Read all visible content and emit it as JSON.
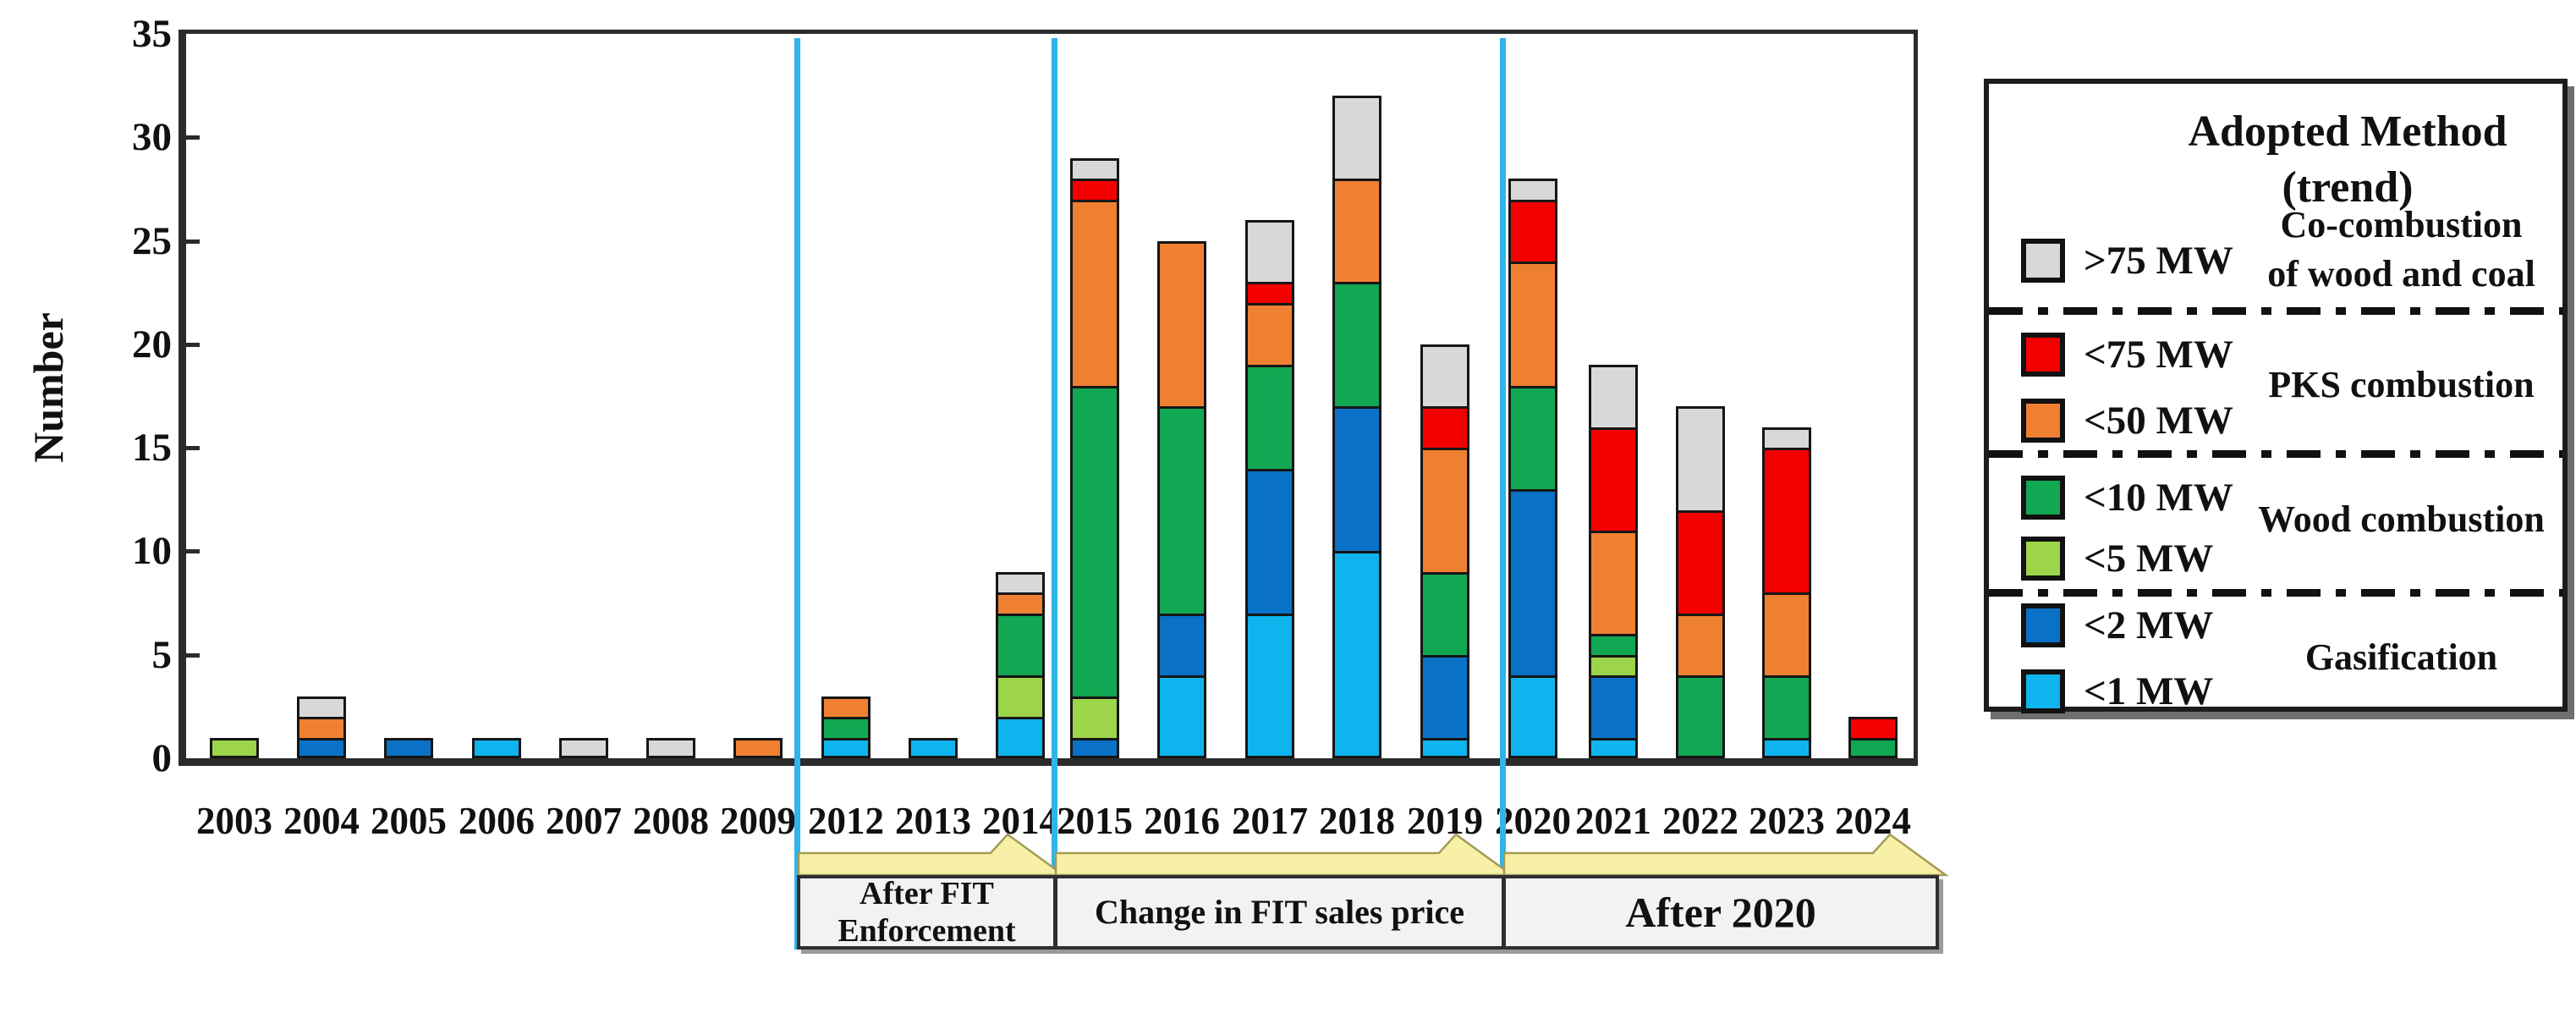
{
  "chart_data": {
    "type": "bar",
    "stacked": true,
    "title": "",
    "xlabel": "",
    "ylabel": "Number",
    "ylim": [
      0,
      35
    ],
    "yticks": [
      0,
      5,
      10,
      15,
      20,
      25,
      30,
      35
    ],
    "grid": false,
    "legend_position": "right",
    "categories": [
      "2003",
      "2004",
      "2005",
      "2006",
      "2007",
      "2008",
      "2009",
      "2012",
      "2013",
      "2014",
      "2015",
      "2016",
      "2017",
      "2018",
      "2019",
      "2020",
      "2021",
      "2022",
      "2023",
      "2024"
    ],
    "series": [
      {
        "name": "<1 MW",
        "method": "Gasification",
        "color": "#0FB4EE",
        "values": [
          0,
          0,
          0,
          1,
          0,
          0,
          0,
          1,
          1,
          2,
          0,
          4,
          7,
          10,
          1,
          4,
          1,
          0,
          1,
          0
        ]
      },
      {
        "name": "<2 MW",
        "method": "Gasification",
        "color": "#0971C6",
        "values": [
          0,
          1,
          1,
          0,
          0,
          0,
          0,
          0,
          0,
          0,
          1,
          3,
          7,
          7,
          4,
          9,
          3,
          0,
          0,
          0
        ]
      },
      {
        "name": "<5 MW",
        "method": "Wood combustion",
        "color": "#9CD54A",
        "values": [
          1,
          0,
          0,
          0,
          0,
          0,
          0,
          0,
          0,
          2,
          2,
          0,
          0,
          0,
          0,
          0,
          1,
          0,
          0,
          0
        ]
      },
      {
        "name": "<10 MW",
        "method": "Wood combustion",
        "color": "#12A752",
        "values": [
          0,
          0,
          0,
          0,
          0,
          0,
          0,
          1,
          0,
          3,
          15,
          10,
          5,
          6,
          4,
          5,
          1,
          4,
          3,
          1
        ]
      },
      {
        "name": "<50 MW",
        "method": "PKS combustion",
        "color": "#EF8032",
        "values": [
          0,
          1,
          0,
          0,
          0,
          0,
          1,
          1,
          0,
          1,
          9,
          8,
          3,
          5,
          6,
          6,
          5,
          3,
          4,
          0
        ]
      },
      {
        "name": "<75 MW",
        "method": "PKS combustion",
        "color": "#F40000",
        "values": [
          0,
          0,
          0,
          0,
          0,
          0,
          0,
          0,
          0,
          0,
          1,
          0,
          1,
          0,
          2,
          3,
          5,
          5,
          7,
          1
        ]
      },
      {
        "name": ">75 MW",
        "method": "Co-combustion of wood and coal",
        "color": "#D8D8D8",
        "values": [
          0,
          1,
          0,
          0,
          1,
          1,
          0,
          0,
          0,
          1,
          1,
          0,
          3,
          4,
          3,
          1,
          3,
          5,
          1,
          0
        ]
      }
    ],
    "totals": [
      1,
      3,
      1,
      1,
      1,
      1,
      1,
      3,
      1,
      9,
      29,
      25,
      26,
      32,
      20,
      28,
      19,
      17,
      16,
      2
    ],
    "annotations": [
      "After FIT Enforcement",
      "Change in FIT sales price",
      "After 2020"
    ]
  },
  "legend": {
    "title_line1": "Adopted Method",
    "title_line2": "(trend)",
    "groups": [
      {
        "method_lines": [
          "Co-combustion",
          "of wood and coal"
        ],
        "entries": [
          {
            "label": ">75 MW",
            "color": "#D8D8D8"
          }
        ]
      },
      {
        "method_lines": [
          "PKS combustion"
        ],
        "entries": [
          {
            "label": "<75 MW",
            "color": "#F40000"
          },
          {
            "label": "<50 MW",
            "color": "#EF8032"
          }
        ]
      },
      {
        "method_lines": [
          "Wood combustion"
        ],
        "entries": [
          {
            "label": "<10 MW",
            "color": "#12A752"
          },
          {
            "label": "<5 MW",
            "color": "#9CD54A"
          }
        ]
      },
      {
        "method_lines": [
          "Gasification"
        ],
        "entries": [
          {
            "label": "<2 MW",
            "color": "#0971C6"
          },
          {
            "label": "<1 MW",
            "color": "#0FB4EE"
          }
        ]
      }
    ]
  },
  "periods": [
    {
      "lines": [
        "After FIT",
        "Enforcement"
      ]
    },
    {
      "lines": [
        "Change in FIT sales price"
      ]
    },
    {
      "lines": [
        "After 2020"
      ]
    }
  ],
  "colors": {
    "timeline_line": "#2FB5EA",
    "banner_fill": "#F8F0A6",
    "banner_stroke": "#A39B55",
    "axis": "#2b2b2b"
  }
}
